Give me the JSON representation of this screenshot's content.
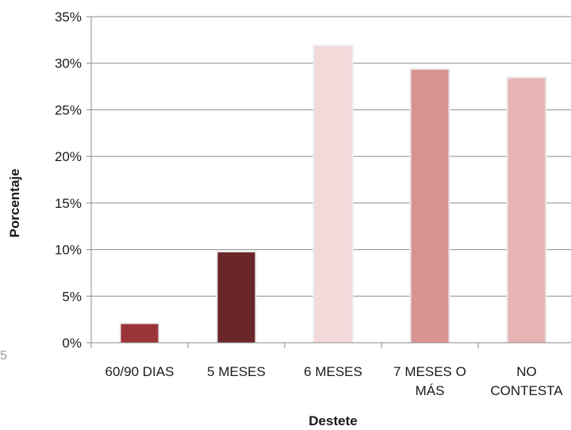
{
  "chart_data": {
    "type": "bar",
    "categories": [
      [
        "60/90 DIAS"
      ],
      [
        "5 MESES"
      ],
      [
        "6 MESES"
      ],
      [
        "7 MESES O",
        "MÁS"
      ],
      [
        "NO",
        "CONTESTA"
      ]
    ],
    "values": [
      2.0,
      9.7,
      31.8,
      29.3,
      28.4
    ],
    "colors": [
      "#9b3438",
      "#692528",
      "#f3d9da",
      "#d99492",
      "#e8b5b5"
    ],
    "ylabel": "Porcentaje",
    "xlabel": "Destete",
    "ylim": [
      0,
      35
    ],
    "yticks": [
      "0%",
      "5%",
      "10%",
      "15%",
      "20%",
      "25%",
      "30%",
      "35%"
    ],
    "grid": true,
    "legend": "none"
  },
  "stray_text": "5"
}
